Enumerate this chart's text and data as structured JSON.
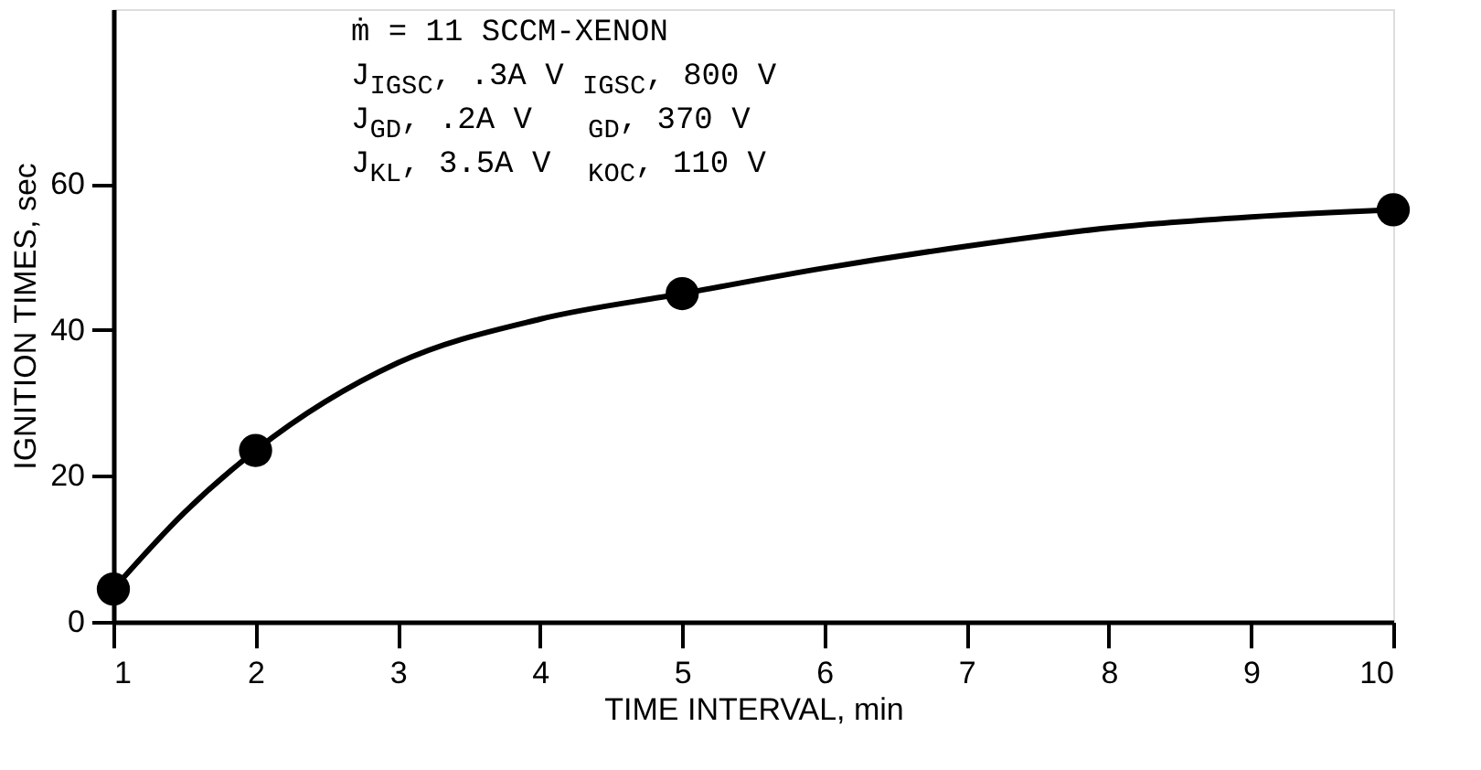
{
  "chart_data": {
    "type": "line",
    "xlabel": "TIME INTERVAL, min",
    "ylabel": "IGNITION TIMES, sec",
    "annotations": [
      "ṁ = 11 SCCM-XENON",
      "J$_{IGSC}$, .3A  V$_{IGSC}$, 800 V",
      "J$_{GD}$, .2A    V$_{GD}$, 370 V",
      "J$_{KL}$, 3.5A   V$_{KOC}$, 110 V"
    ],
    "xlim": [
      1,
      10
    ],
    "xticks": [
      1,
      2,
      3,
      4,
      5,
      6,
      7,
      8,
      9,
      10
    ],
    "ylim": [
      0,
      84
    ],
    "yticks": [
      0,
      20,
      40,
      60
    ],
    "grid": false,
    "series": [
      {
        "type": "scatter",
        "marker": "circle",
        "color": "#000000",
        "x": [
          1,
          2,
          5,
          10
        ],
        "values": [
          4.5,
          23.5,
          45,
          56.5
        ]
      },
      {
        "color": "#000000",
        "x": [
          1,
          1.5,
          2,
          3,
          4,
          5,
          6,
          7,
          8,
          9,
          10
        ],
        "values": [
          4.5,
          15,
          23.5,
          35.5,
          41.5,
          45,
          48.5,
          51.5,
          54,
          55.5,
          56.5
        ]
      }
    ]
  }
}
